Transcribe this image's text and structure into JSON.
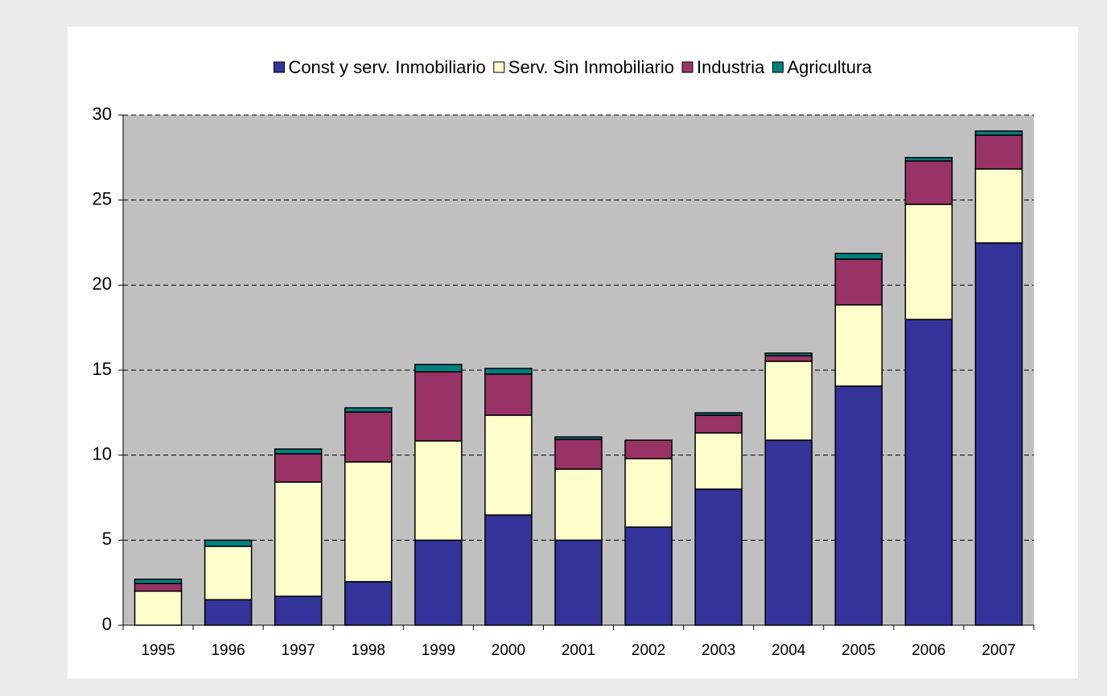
{
  "chart_data": {
    "type": "stacked-bar",
    "categories": [
      "1995",
      "1996",
      "1997",
      "1998",
      "1999",
      "2000",
      "2001",
      "2002",
      "2003",
      "2004",
      "2005",
      "2006",
      "2007"
    ],
    "series": [
      {
        "name": "Const y serv. Inmobiliario",
        "color": "#333399",
        "values": [
          0,
          1.5,
          1.7,
          2.56,
          5.0,
          6.48,
          5.0,
          5.77,
          8.0,
          10.88,
          14.06,
          17.98,
          22.48
        ]
      },
      {
        "name": "Serv. Sin Inmobiliario",
        "color": "#ffffcc",
        "values": [
          2.0,
          3.14,
          6.72,
          7.04,
          5.84,
          5.87,
          4.18,
          4.03,
          3.31,
          4.64,
          4.78,
          6.77,
          4.35
        ]
      },
      {
        "name": "Industria",
        "color": "#993366",
        "values": [
          0.45,
          0,
          1.66,
          2.94,
          4.06,
          2.42,
          1.75,
          1.08,
          1.04,
          0.33,
          2.69,
          2.55,
          1.99
        ]
      },
      {
        "name": "Agricultura",
        "color": "#008080",
        "values": [
          0.25,
          0.36,
          0.28,
          0.24,
          0.43,
          0.33,
          0.14,
          0,
          0.14,
          0.15,
          0.33,
          0.2,
          0.24
        ]
      }
    ],
    "ylim": [
      0,
      30
    ],
    "yticks": [
      0,
      5,
      10,
      15,
      20,
      25,
      30
    ],
    "grid": true,
    "legend": "top"
  }
}
